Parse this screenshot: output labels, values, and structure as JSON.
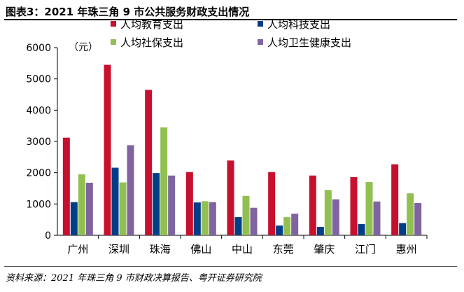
{
  "header": {
    "title": "图表3：2021 年珠三角 9 市公共服务财政支出情况"
  },
  "footer": {
    "source": "资料来源：2021 年珠三角 9 市财政决算报告、粤开证券研究院"
  },
  "chart_data": {
    "type": "bar",
    "unit_label": "（元）",
    "categories": [
      "广州",
      "深圳",
      "珠海",
      "佛山",
      "中山",
      "东莞",
      "肇庆",
      "江门",
      "惠州"
    ],
    "series": [
      {
        "name": "人均教育支出",
        "color": "#C8102E",
        "values": [
          3120,
          5450,
          4650,
          2020,
          2390,
          2020,
          1910,
          1860,
          2270
        ]
      },
      {
        "name": "人均科技支出",
        "color": "#003F87",
        "values": [
          1060,
          2160,
          1990,
          1050,
          580,
          310,
          270,
          360,
          390
        ]
      },
      {
        "name": "人均社保支出",
        "color": "#92C050",
        "values": [
          1950,
          1690,
          3450,
          1090,
          1260,
          580,
          1450,
          1700,
          1340
        ]
      },
      {
        "name": "人均卫生健康支出",
        "color": "#8064A2",
        "values": [
          1680,
          2880,
          1910,
          1060,
          880,
          690,
          1150,
          1080,
          1030
        ]
      }
    ],
    "y_ticks": [
      "0",
      "1000",
      "2000",
      "3000",
      "4000",
      "5000",
      "6000"
    ],
    "ylim": [
      0,
      6000
    ],
    "grid": false,
    "legend_position": "top-center"
  }
}
